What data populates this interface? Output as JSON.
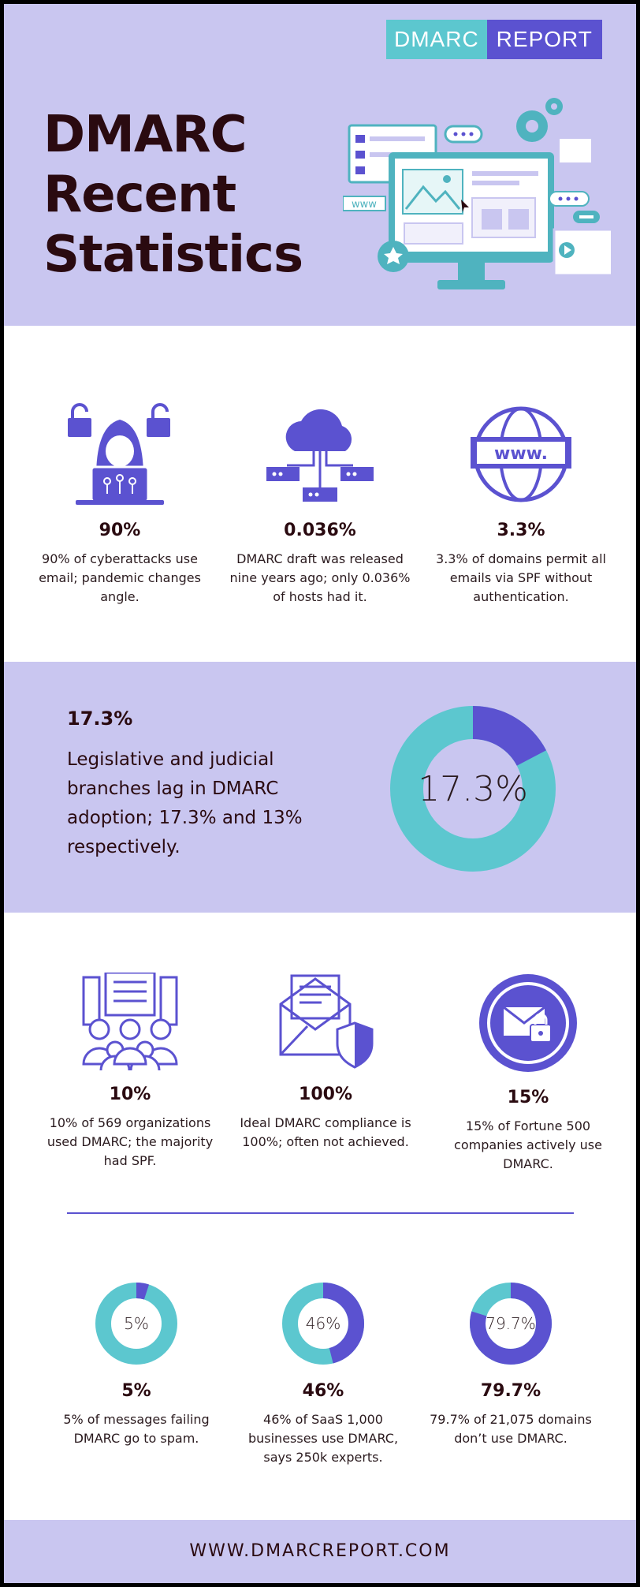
{
  "logo": {
    "part_a": "DMARC",
    "part_b": "REPORT"
  },
  "title": "DMARC Recent Statistics",
  "stats_row1": [
    {
      "icon": "hacker-icon",
      "value": "90%",
      "desc": "90% of cyberattacks use email; pandemic changes angle."
    },
    {
      "icon": "cloud-network-icon",
      "value": "0.036%",
      "desc": "DMARC draft was released nine years ago; only 0.036% of hosts had it."
    },
    {
      "icon": "www-globe-icon",
      "value": "3.3%",
      "desc": "3.3% of domains permit all emails via SPF without authentication."
    }
  ],
  "band": {
    "value": "17.3%",
    "text": "Legislative and judicial branches lag in DMARC adoption; 17.3% and 13% respectively.",
    "donut_label": "17.3%",
    "donut_fraction": 0.173
  },
  "stats_row2": [
    {
      "icon": "organization-people-icon",
      "value": "10%",
      "desc": "10% of 569 organizations used DMARC; the majority had SPF."
    },
    {
      "icon": "email-shield-icon",
      "value": "100%",
      "desc": "Ideal DMARC compliance is 100%; often not achieved."
    },
    {
      "icon": "locked-mail-icon",
      "value": "15%",
      "desc": "15% of Fortune 500 companies actively use DMARC."
    }
  ],
  "stats_row3": [
    {
      "donut_label": "5%",
      "fraction": 0.05,
      "value": "5%",
      "desc": "5% of messages failing DMARC go to spam."
    },
    {
      "donut_label": "46%",
      "fraction": 0.46,
      "value": "46%",
      "desc": "46% of SaaS 1,000 businesses use DMARC, says 250k experts."
    },
    {
      "donut_label": "79.7%",
      "fraction": 0.797,
      "value": "79.7%",
      "desc": "79.7% of 21,075 domains don’t use DMARC."
    }
  ],
  "footer": "WWW.DMARCREPORT.COM",
  "colors": {
    "purple": "#5b52d0",
    "teal": "#5cc7cf",
    "lavender": "#c9c6f0",
    "dark": "#2a0a10"
  }
}
